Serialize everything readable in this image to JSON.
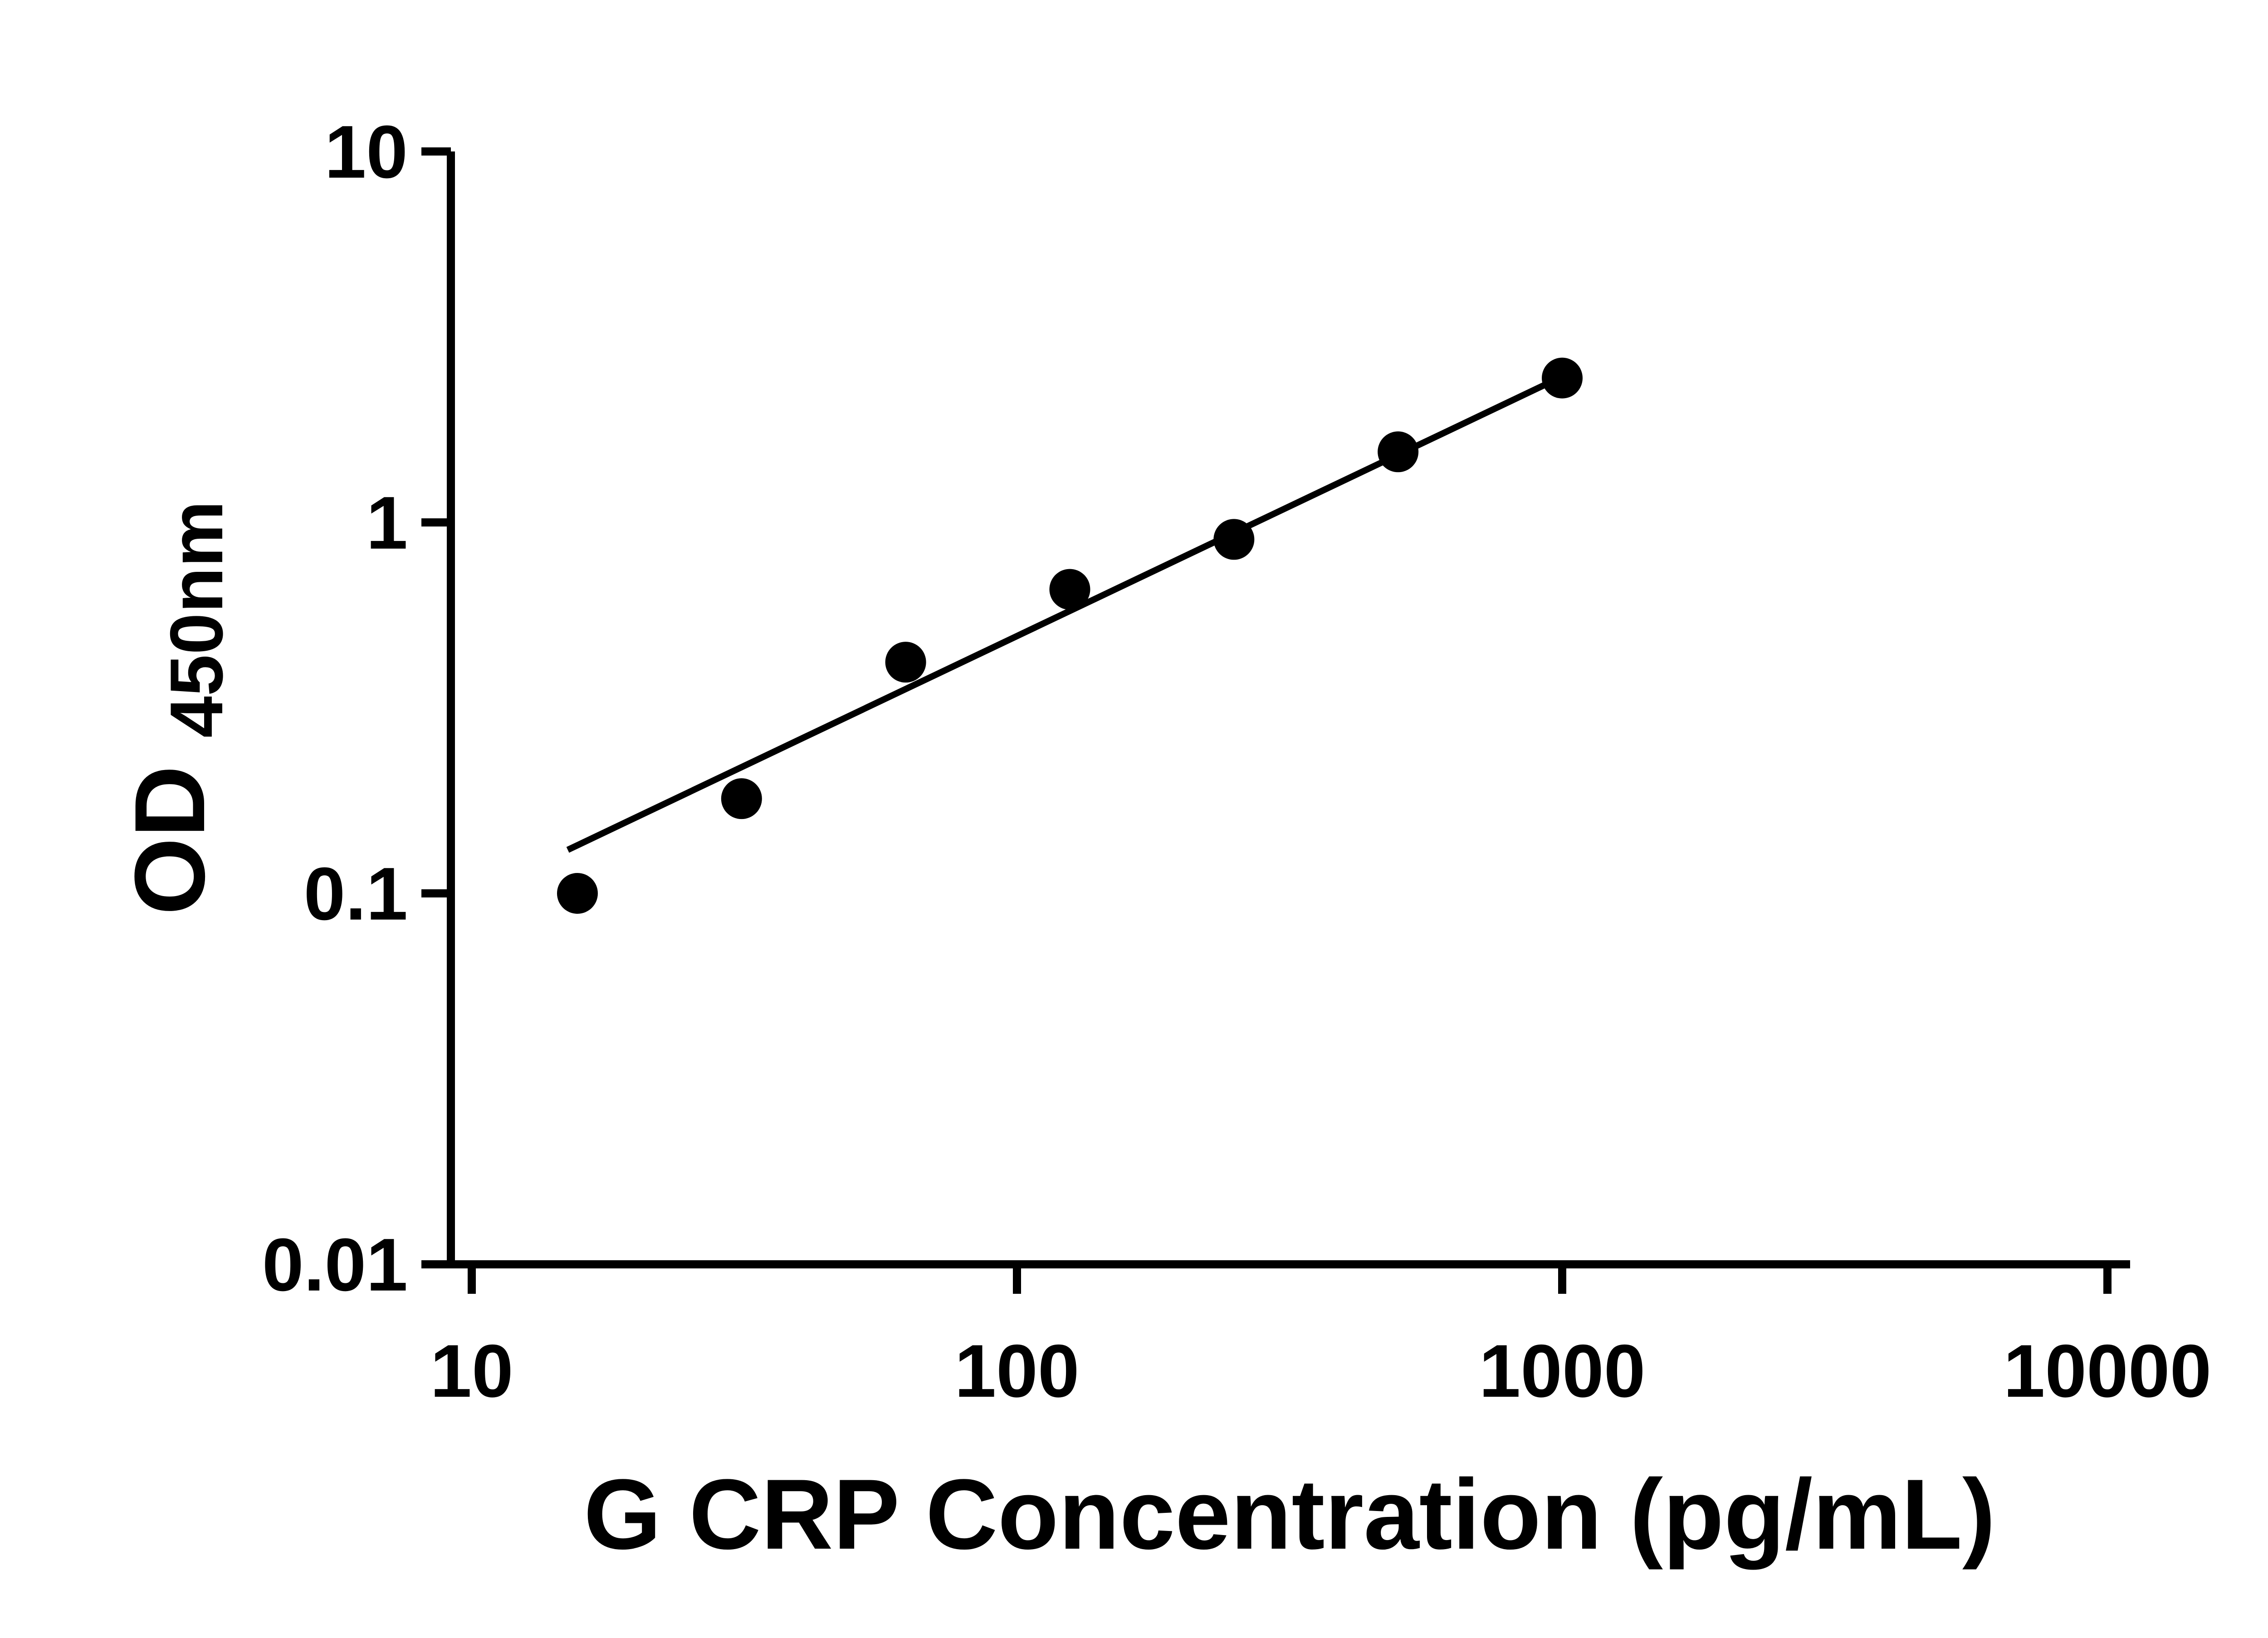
{
  "page": {
    "background": "#ffffff"
  },
  "colors": {
    "axis": "#000000",
    "marker": "#000000",
    "line": "#000000",
    "background": "#ffffff"
  },
  "chart_data": {
    "type": "scatter",
    "title": "",
    "xlabel": "G CRP Concentration (pg/mL)",
    "ylabel": "OD450nm",
    "ylabel_main": "OD",
    "ylabel_sub": "450nm",
    "x_scale": "log10",
    "y_scale": "log10",
    "xlim": [
      10,
      10000
    ],
    "ylim": [
      0.01,
      10
    ],
    "x_ticks": [
      10,
      100,
      1000,
      10000
    ],
    "x_tick_labels": [
      "10",
      "100",
      "1000",
      "10000"
    ],
    "y_ticks": [
      0.01,
      0.1,
      1,
      10
    ],
    "y_tick_labels": [
      "0.01",
      "0.1",
      "1",
      "10"
    ],
    "grid": false,
    "legend": "none",
    "series": [
      {
        "name": "standard-curve-fit-line",
        "type": "line",
        "color": "#000000",
        "points": [
          {
            "x": 15,
            "y": 0.131
          },
          {
            "x": 1010,
            "y": 2.49
          }
        ]
      },
      {
        "name": "standard-points",
        "type": "scatter",
        "marker": "circle-filled",
        "color": "#000000",
        "points": [
          {
            "x": 15.625,
            "y": 0.1
          },
          {
            "x": 31.25,
            "y": 0.18
          },
          {
            "x": 62.5,
            "y": 0.42
          },
          {
            "x": 125,
            "y": 0.66
          },
          {
            "x": 250,
            "y": 0.9
          },
          {
            "x": 500,
            "y": 1.55
          },
          {
            "x": 1000,
            "y": 2.45
          }
        ]
      }
    ]
  }
}
